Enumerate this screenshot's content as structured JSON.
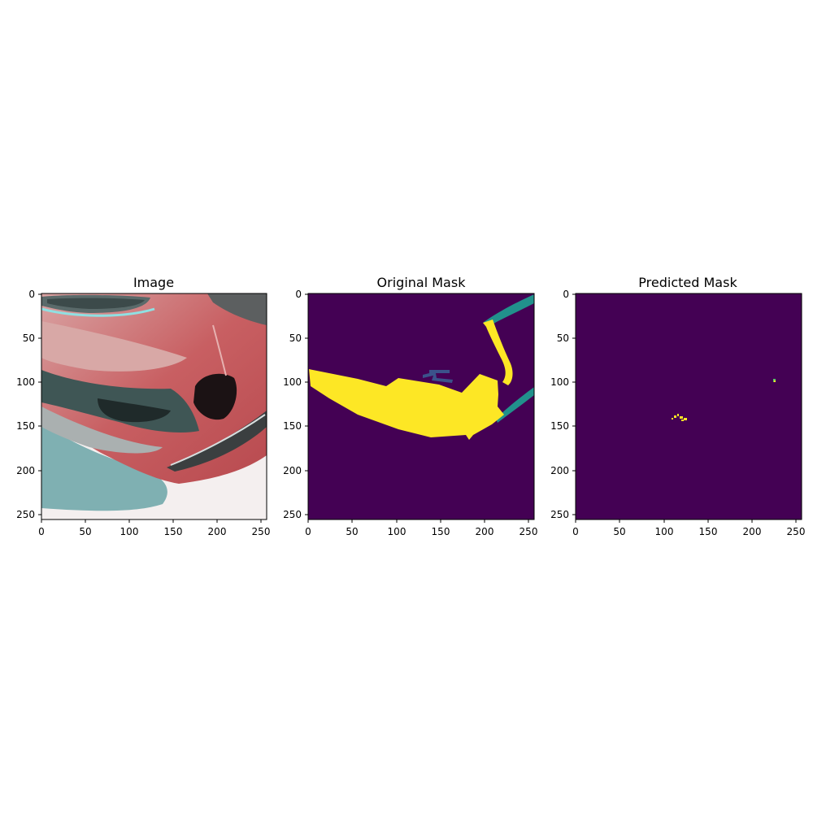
{
  "panels": [
    {
      "title": "Image",
      "xticks": [
        "0",
        "50",
        "100",
        "150",
        "200",
        "250"
      ],
      "yticks": [
        "0",
        "50",
        "100",
        "150",
        "200",
        "250"
      ]
    },
    {
      "title": "Original Mask",
      "xticks": [
        "0",
        "50",
        "100",
        "150",
        "200",
        "250"
      ],
      "yticks": [
        "0",
        "50",
        "100",
        "150",
        "200",
        "250"
      ]
    },
    {
      "title": "Predicted Mask",
      "xticks": [
        "0",
        "50",
        "100",
        "150",
        "200",
        "250"
      ],
      "yticks": [
        "0",
        "50",
        "100",
        "150",
        "200",
        "250"
      ]
    }
  ],
  "colors": {
    "mask_background": "#440154",
    "mask_class_high": "#fde725",
    "mask_class_mid": "#21918c",
    "mask_class_low": "#3b528b",
    "car_red": "#c25a5c",
    "snow": "#f3eeee",
    "teal_ground": "#7fb3b4"
  }
}
